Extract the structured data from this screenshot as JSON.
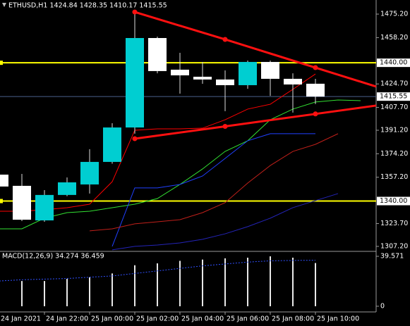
{
  "chart_data": [
    {
      "type": "candlestick",
      "title": "ETHUSD,H1  1424.84 1428.35 1410.17 1415.55",
      "categories": [
        "24 Jan 2021",
        null,
        "24 Jan 22:00",
        null,
        "25 Jan 00:00",
        null,
        "25 Jan 02:00",
        null,
        "25 Jan 04:00",
        null,
        "25 Jan 06:00",
        null,
        "25 Jan 08:00",
        null,
        "25 Jan 10:00",
        null,
        null
      ],
      "open": [
        1359.1,
        1351.0,
        1326.0,
        1344.4,
        1352.0,
        1368.3,
        1393.2,
        1457.9,
        1435.0,
        1429.9,
        1427.9,
        1423.8,
        1440.6,
        1428.4,
        1424.84,
        null,
        null
      ],
      "high": [
        1361.0,
        1359.6,
        1347.9,
        1357.1,
        1377.5,
        1396.3,
        1477.7,
        1458.9,
        1447.2,
        1440.6,
        1434.5,
        1441.6,
        1441.6,
        1432.4,
        1428.35,
        null,
        null
      ],
      "low": [
        1349.0,
        1325.5,
        1325.0,
        1343.5,
        1345.4,
        1367.0,
        1388.7,
        1432.4,
        1417.7,
        1424.8,
        1405.0,
        1421.2,
        1416.1,
        1404.0,
        1410.17,
        null,
        null
      ],
      "close": [
        1350.5,
        1326.5,
        1344.4,
        1353.5,
        1368.3,
        1393.2,
        1457.9,
        1434.0,
        1430.9,
        1427.9,
        1423.8,
        1440.6,
        1428.4,
        1424.3,
        1415.55,
        null,
        null
      ],
      "up_color": "#00ced1",
      "down_color": "#ffffff",
      "series": [
        {
          "color": "#ff0000",
          "values": [
            1332.6,
            1332.6,
            1333.7,
            1335.2,
            1337.7,
            1354.0,
            1391.2,
            1392.2,
            1392.2,
            1392.7,
            1398.8,
            1406.5,
            1410.0,
            1420.8,
            1431.9,
            null,
            null
          ]
        },
        {
          "color": "#32e032",
          "values": [
            1319.9,
            1319.9,
            1327.6,
            1331.6,
            1332.6,
            1335.2,
            1337.7,
            1341.8,
            1352.0,
            1363.2,
            1375.9,
            1383.6,
            1398.8,
            1406.5,
            1411.6,
            1413.1,
            1412.6
          ]
        },
        {
          "color": "#2040ff",
          "values": [
            null,
            null,
            null,
            null,
            null,
            1307.2,
            1349.5,
            1349.5,
            1352.0,
            1358.1,
            1370.8,
            1383.6,
            1388.7,
            1388.7,
            1388.7,
            null,
            null
          ]
        },
        {
          "color": "#c0201a",
          "values": [
            null,
            null,
            null,
            null,
            1318.4,
            1319.9,
            1323.5,
            1325.0,
            1326.5,
            1331.6,
            1338.8,
            1353.0,
            1365.7,
            1375.9,
            1381.0,
            1388.7,
            null
          ]
        },
        {
          "color": "#2424b8",
          "values": [
            null,
            null,
            null,
            null,
            null,
            1304.7,
            1307.2,
            1308.2,
            1309.7,
            1312.3,
            1316.3,
            1321.5,
            1327.6,
            1335.2,
            1340.3,
            1345.4,
            null
          ]
        }
      ],
      "levels": [
        {
          "value": 1440,
          "label": "1440.00",
          "color": "#ffff00"
        },
        {
          "value": 1415.55,
          "label": "1415.55",
          "color": "#4a5f8a"
        },
        {
          "value": 1340,
          "label": "1340.00",
          "color": "#ffff00"
        }
      ],
      "trendlines": [
        {
          "color": "#ff1010",
          "x": [
            6,
            10,
            14
          ],
          "y": [
            1476.7,
            1456.9,
            1436.5
          ],
          "extend_right": true
        },
        {
          "color": "#ff1010",
          "x": [
            6,
            10,
            14
          ],
          "y": [
            1385.1,
            1394.0,
            1403.0
          ],
          "extend_right": true
        }
      ],
      "ylim": [
        1303.6,
        1485.4
      ],
      "yticks": [
        {
          "value": 1475.2,
          "label": "1475.20"
        },
        {
          "value": 1458.2,
          "label": "1458.20"
        },
        {
          "value": 1424.7,
          "label": "1424.70"
        },
        {
          "value": 1407.7,
          "label": "1407.70"
        },
        {
          "value": 1391.2,
          "label": "1391.20"
        },
        {
          "value": 1374.2,
          "label": "1374.20"
        },
        {
          "value": 1357.2,
          "label": "1357.20"
        },
        {
          "value": 1323.7,
          "label": "1323.70"
        },
        {
          "value": 1307.2,
          "label": "1307.20"
        }
      ]
    },
    {
      "type": "bar",
      "title": "MACD(12,26,9) 34.274 36.459",
      "values": [
        19,
        20,
        20,
        21.7,
        23,
        26,
        32.5,
        34,
        36,
        37,
        38,
        38.5,
        39.571,
        38.5,
        34.274,
        null,
        null
      ],
      "color": "#e8e8e8",
      "series": [
        {
          "color": "#3050ff",
          "values": [
            20,
            21,
            21.5,
            22,
            23,
            24,
            26,
            28,
            30,
            32,
            33.5,
            35,
            36,
            36.3,
            36.459,
            null,
            null
          ]
        }
      ],
      "ylim": [
        -4.5,
        43.5
      ],
      "yticks": [
        39.571,
        0
      ]
    }
  ]
}
